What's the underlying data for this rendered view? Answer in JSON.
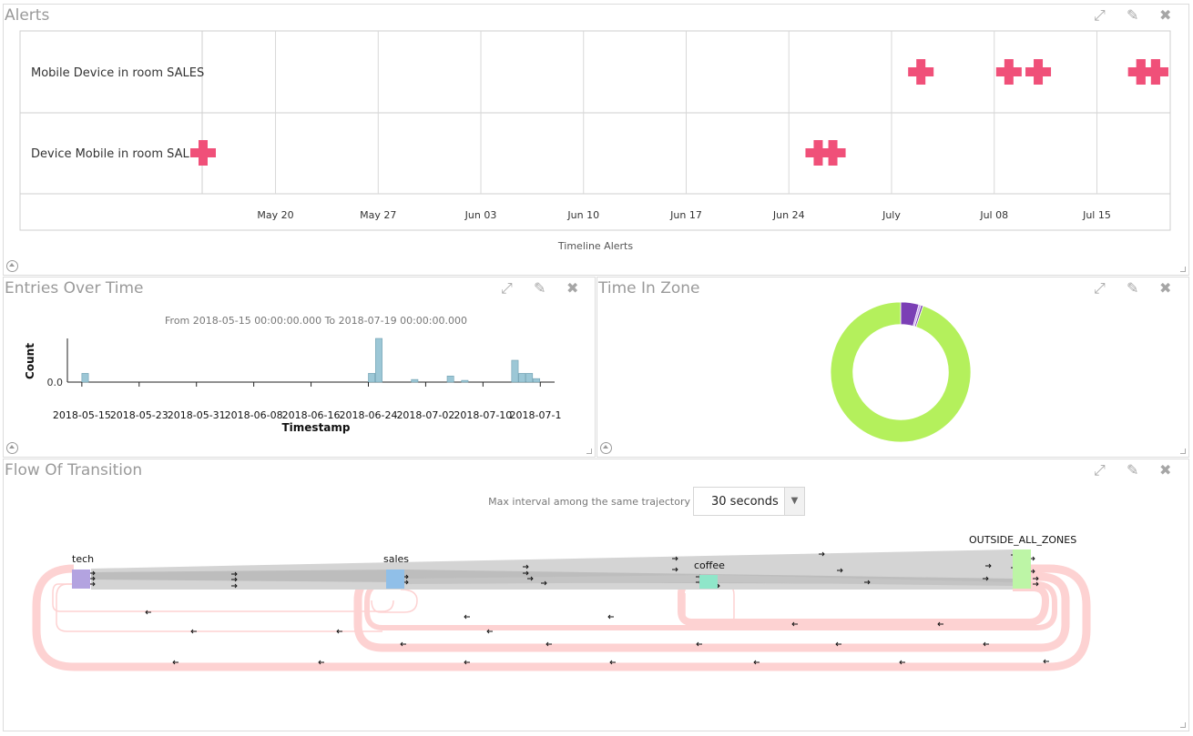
{
  "panels": {
    "alerts": {
      "title": "Alerts"
    },
    "entries": {
      "title": "Entries Over Time"
    },
    "zone": {
      "title": "Time In Zone"
    },
    "flow": {
      "title": "Flow Of Transition"
    }
  },
  "icons": {
    "maximize": "expand-icon",
    "edit": "pencil-icon",
    "close": "close-icon",
    "collapse": "collapse-up-icon",
    "resize": "resize-corner-icon"
  },
  "colors": {
    "alert_marker": "#f05079",
    "histogram_bar": "#9cc7d6",
    "donut_major": "#b4f05c",
    "donut_minor": "#7b3fb5",
    "loop": "#fdd2d2",
    "band": "#d2d2d2"
  },
  "chart_data": [
    {
      "type": "timeline",
      "xlabel": "Timeline Alerts",
      "x_ticks": [
        "May 20",
        "May 27",
        "Jun 03",
        "Jun 10",
        "Jun 17",
        "Jun 24",
        "July",
        "Jul 08",
        "Jul 15"
      ],
      "x_range": [
        "2018-05-15",
        "2018-07-20"
      ],
      "rows": [
        {
          "label": "Mobile Device in room SALES",
          "events": [
            "2018-07-03",
            "2018-07-09",
            "2018-07-11",
            "2018-07-18",
            "2018-07-18",
            "2018-07-19",
            "2018-07-19"
          ]
        },
        {
          "label": "Device Mobile in room SALES",
          "events": [
            "2018-05-15",
            "2018-06-26",
            "2018-06-27"
          ]
        }
      ]
    },
    {
      "type": "bar",
      "subtitle": "From 2018-05-15 00:00:00.000 To 2018-07-19 00:00:00.000",
      "xlabel": "Timestamp",
      "ylabel": "Count",
      "y_tick": "0.0",
      "x_ticks": [
        "2018-05-15",
        "2018-05-23",
        "2018-05-31",
        "2018-06-08",
        "2018-06-16",
        "2018-06-24",
        "2018-07-02",
        "2018-07-10",
        "2018-07-1"
      ],
      "x_range": [
        "2018-05-14",
        "2018-07-20"
      ],
      "bars": [
        {
          "date": "2018-05-15",
          "value": 1
        },
        {
          "date": "2018-06-24",
          "value": 1
        },
        {
          "date": "2018-06-25",
          "value": 5
        },
        {
          "date": "2018-06-30",
          "value": 0.3
        },
        {
          "date": "2018-07-05",
          "value": 0.7
        },
        {
          "date": "2018-07-07",
          "value": 0.2
        },
        {
          "date": "2018-07-14",
          "value": 2.5
        },
        {
          "date": "2018-07-15",
          "value": 1
        },
        {
          "date": "2018-07-16",
          "value": 1
        },
        {
          "date": "2018-07-17",
          "value": 0.4
        }
      ]
    },
    {
      "type": "pie",
      "hole": 0.68,
      "slices": [
        {
          "value": 4.2,
          "color": "#7b3fb5"
        },
        {
          "value": 0.5,
          "color": "#c9a6ee"
        },
        {
          "value": 0.5,
          "color": "#7b3fb5"
        },
        {
          "value": 94.8,
          "color": "#b4f05c"
        }
      ]
    }
  ],
  "flow": {
    "control_label": "Max interval among the same trajectory",
    "interval_value": "30 seconds",
    "nodes": [
      {
        "name": "tech",
        "color": "#b3a3e0"
      },
      {
        "name": "sales",
        "color": "#90bfe8"
      },
      {
        "name": "coffee",
        "color": "#8fe6c9"
      },
      {
        "name": "OUTSIDE_ALL_ZONES",
        "color": "#bdf5a6"
      }
    ]
  }
}
